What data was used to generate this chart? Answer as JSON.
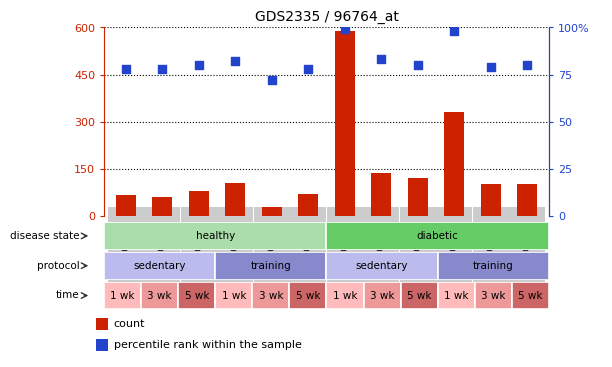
{
  "title": "GDS2335 / 96764_at",
  "samples": [
    "GSM103328",
    "GSM103329",
    "GSM103330",
    "GSM103337",
    "GSM103338",
    "GSM103339",
    "GSM103331",
    "GSM103332",
    "GSM103333",
    "GSM103334",
    "GSM103335",
    "GSM103336"
  ],
  "counts": [
    65,
    60,
    80,
    105,
    28,
    68,
    590,
    135,
    120,
    330,
    100,
    100
  ],
  "percentile_ranks": [
    78,
    78,
    80,
    82,
    72,
    78,
    99,
    83,
    80,
    98,
    79,
    80
  ],
  "left_ylim": [
    0,
    600
  ],
  "left_yticks": [
    0,
    150,
    300,
    450,
    600
  ],
  "right_ylim": [
    0,
    100
  ],
  "right_yticks": [
    0,
    25,
    50,
    75,
    100
  ],
  "bar_color": "#cc2200",
  "dot_color": "#2244cc",
  "disease_state": [
    {
      "label": "healthy",
      "start": 0,
      "end": 6,
      "color": "#aaddaa"
    },
    {
      "label": "diabetic",
      "start": 6,
      "end": 12,
      "color": "#66cc66"
    }
  ],
  "protocol": [
    {
      "label": "sedentary",
      "start": 0,
      "end": 3,
      "color": "#bbbbee"
    },
    {
      "label": "training",
      "start": 3,
      "end": 6,
      "color": "#8888cc"
    },
    {
      "label": "sedentary",
      "start": 6,
      "end": 9,
      "color": "#bbbbee"
    },
    {
      "label": "training",
      "start": 9,
      "end": 12,
      "color": "#8888cc"
    }
  ],
  "time": [
    {
      "label": "1 wk",
      "start": 0,
      "end": 1,
      "color": "#ffbbbb"
    },
    {
      "label": "3 wk",
      "start": 1,
      "end": 2,
      "color": "#ee9999"
    },
    {
      "label": "5 wk",
      "start": 2,
      "end": 3,
      "color": "#cc6666"
    },
    {
      "label": "1 wk",
      "start": 3,
      "end": 4,
      "color": "#ffbbbb"
    },
    {
      "label": "3 wk",
      "start": 4,
      "end": 5,
      "color": "#ee9999"
    },
    {
      "label": "5 wk",
      "start": 5,
      "end": 6,
      "color": "#cc6666"
    },
    {
      "label": "1 wk",
      "start": 6,
      "end": 7,
      "color": "#ffbbbb"
    },
    {
      "label": "3 wk",
      "start": 7,
      "end": 8,
      "color": "#ee9999"
    },
    {
      "label": "5 wk",
      "start": 8,
      "end": 9,
      "color": "#cc6666"
    },
    {
      "label": "1 wk",
      "start": 9,
      "end": 10,
      "color": "#ffbbbb"
    },
    {
      "label": "3 wk",
      "start": 10,
      "end": 11,
      "color": "#ee9999"
    },
    {
      "label": "5 wk",
      "start": 11,
      "end": 12,
      "color": "#cc6666"
    }
  ],
  "legend_count_color": "#cc2200",
  "legend_dot_color": "#2244cc",
  "background_color": "#ffffff",
  "row_labels": [
    "disease state",
    "protocol",
    "time"
  ],
  "arrow_color": "#555555"
}
